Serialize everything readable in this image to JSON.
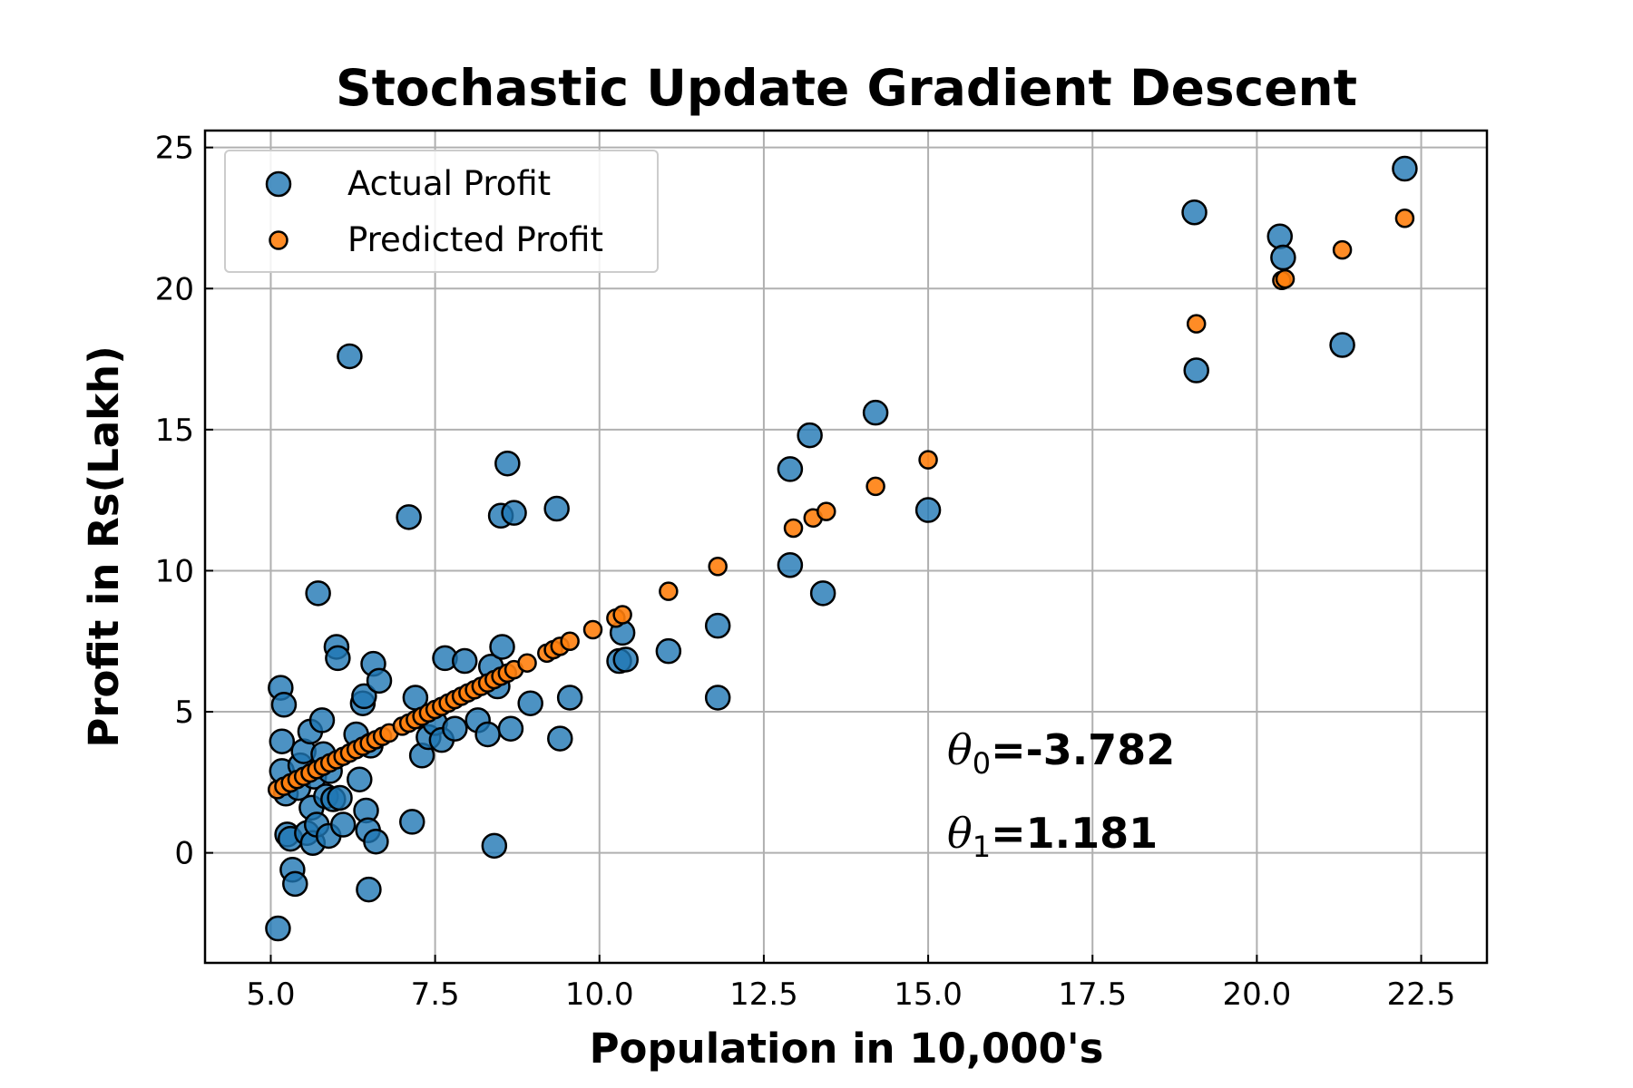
{
  "chart_data": {
    "type": "scatter",
    "title": "Stochastic Update Gradient Descent",
    "xlabel": "Population in 10,000's",
    "ylabel": "Profit in Rs(Lakh)",
    "xlim": [
      4.0,
      23.5
    ],
    "ylim": [
      -3.9,
      25.6
    ],
    "xticks": [
      "5.0",
      "7.5",
      "10.0",
      "12.5",
      "15.0",
      "17.5",
      "20.0",
      "22.5"
    ],
    "xtick_values": [
      5.0,
      7.5,
      10.0,
      12.5,
      15.0,
      17.5,
      20.0,
      22.5
    ],
    "yticks": [
      "0",
      "5",
      "10",
      "15",
      "20",
      "25"
    ],
    "ytick_values": [
      0,
      5,
      10,
      15,
      20,
      25
    ],
    "grid": true,
    "legend_position": "top-left",
    "annotations": [
      {
        "symbol": "θ",
        "sub": "0",
        "text": "=-3.782"
      },
      {
        "symbol": "θ",
        "sub": "1",
        "text": "=1.181"
      }
    ],
    "series": [
      {
        "name": "Actual Profit",
        "color": "#1f77b4",
        "points": [
          [
            5.11,
            -2.68
          ],
          [
            5.15,
            5.85
          ],
          [
            5.17,
            3.95
          ],
          [
            5.17,
            2.9
          ],
          [
            5.2,
            5.25
          ],
          [
            5.23,
            2.1
          ],
          [
            5.25,
            0.65
          ],
          [
            5.3,
            0.5
          ],
          [
            5.33,
            -0.6
          ],
          [
            5.37,
            -1.1
          ],
          [
            5.42,
            2.3
          ],
          [
            5.45,
            3.1
          ],
          [
            5.5,
            3.6
          ],
          [
            5.55,
            0.7
          ],
          [
            5.6,
            4.3
          ],
          [
            5.62,
            1.6
          ],
          [
            5.64,
            0.35
          ],
          [
            5.66,
            2.7
          ],
          [
            5.7,
            1.0
          ],
          [
            5.72,
            9.2
          ],
          [
            5.78,
            4.7
          ],
          [
            5.8,
            3.5
          ],
          [
            5.84,
            2.0
          ],
          [
            5.88,
            0.6
          ],
          [
            5.9,
            2.9
          ],
          [
            5.95,
            1.9
          ],
          [
            6.0,
            7.3
          ],
          [
            6.02,
            6.9
          ],
          [
            6.05,
            1.95
          ],
          [
            6.1,
            1.0
          ],
          [
            6.2,
            17.6
          ],
          [
            6.3,
            4.2
          ],
          [
            6.35,
            2.6
          ],
          [
            6.4,
            5.3
          ],
          [
            6.42,
            5.55
          ],
          [
            6.45,
            1.5
          ],
          [
            6.48,
            0.8
          ],
          [
            6.49,
            -1.3
          ],
          [
            6.52,
            3.8
          ],
          [
            6.56,
            6.7
          ],
          [
            6.6,
            0.4
          ],
          [
            6.65,
            6.1
          ],
          [
            7.1,
            11.9
          ],
          [
            7.15,
            1.1
          ],
          [
            7.2,
            5.5
          ],
          [
            7.3,
            3.45
          ],
          [
            7.4,
            4.1
          ],
          [
            7.5,
            4.6
          ],
          [
            7.6,
            4.0
          ],
          [
            7.65,
            6.9
          ],
          [
            7.8,
            4.4
          ],
          [
            7.95,
            6.8
          ],
          [
            8.15,
            4.7
          ],
          [
            8.3,
            4.2
          ],
          [
            8.35,
            6.6
          ],
          [
            8.4,
            0.25
          ],
          [
            8.45,
            5.9
          ],
          [
            8.5,
            11.95
          ],
          [
            8.52,
            7.3
          ],
          [
            8.6,
            13.8
          ],
          [
            8.65,
            4.4
          ],
          [
            8.7,
            12.05
          ],
          [
            8.95,
            5.3
          ],
          [
            9.35,
            12.2
          ],
          [
            9.4,
            4.05
          ],
          [
            9.55,
            5.5
          ],
          [
            10.3,
            6.8
          ],
          [
            10.35,
            7.8
          ],
          [
            10.4,
            6.85
          ],
          [
            11.05,
            7.15
          ],
          [
            11.8,
            8.05
          ],
          [
            11.8,
            5.5
          ],
          [
            12.9,
            13.6
          ],
          [
            12.9,
            10.2
          ],
          [
            13.2,
            14.8
          ],
          [
            13.4,
            9.2
          ],
          [
            14.2,
            15.6
          ],
          [
            15.0,
            12.15
          ],
          [
            19.05,
            22.7
          ],
          [
            19.08,
            17.1
          ],
          [
            20.35,
            21.85
          ],
          [
            20.4,
            21.1
          ],
          [
            21.3,
            18.0
          ],
          [
            22.25,
            24.25
          ]
        ]
      },
      {
        "name": "Predicted Profit",
        "color": "#ff7f0e",
        "points": [
          [
            5.1,
            2.24
          ],
          [
            5.2,
            2.36
          ],
          [
            5.3,
            2.48
          ],
          [
            5.4,
            2.6
          ],
          [
            5.5,
            2.71
          ],
          [
            5.6,
            2.83
          ],
          [
            5.7,
            2.95
          ],
          [
            5.8,
            3.07
          ],
          [
            5.9,
            3.19
          ],
          [
            6.0,
            3.3
          ],
          [
            6.1,
            3.42
          ],
          [
            6.2,
            3.54
          ],
          [
            6.3,
            3.66
          ],
          [
            6.4,
            3.78
          ],
          [
            6.5,
            3.89
          ],
          [
            6.6,
            4.01
          ],
          [
            6.7,
            4.13
          ],
          [
            6.8,
            4.25
          ],
          [
            7.0,
            4.49
          ],
          [
            7.1,
            4.6
          ],
          [
            7.2,
            4.72
          ],
          [
            7.3,
            4.84
          ],
          [
            7.4,
            4.96
          ],
          [
            7.5,
            5.08
          ],
          [
            7.6,
            5.19
          ],
          [
            7.7,
            5.31
          ],
          [
            7.8,
            5.43
          ],
          [
            7.9,
            5.55
          ],
          [
            8.0,
            5.67
          ],
          [
            8.1,
            5.78
          ],
          [
            8.2,
            5.9
          ],
          [
            8.3,
            6.02
          ],
          [
            8.4,
            6.14
          ],
          [
            8.5,
            6.26
          ],
          [
            8.6,
            6.37
          ],
          [
            8.7,
            6.49
          ],
          [
            8.9,
            6.73
          ],
          [
            9.2,
            7.08
          ],
          [
            9.3,
            7.2
          ],
          [
            9.4,
            7.32
          ],
          [
            9.55,
            7.5
          ],
          [
            9.9,
            7.91
          ],
          [
            10.25,
            8.32
          ],
          [
            10.35,
            8.44
          ],
          [
            11.05,
            9.27
          ],
          [
            11.8,
            10.15
          ],
          [
            12.95,
            11.51
          ],
          [
            13.25,
            11.87
          ],
          [
            13.45,
            12.1
          ],
          [
            14.2,
            12.99
          ],
          [
            15.0,
            13.93
          ],
          [
            19.08,
            18.75
          ],
          [
            20.38,
            20.29
          ],
          [
            20.43,
            20.34
          ],
          [
            21.3,
            21.37
          ],
          [
            22.25,
            22.49
          ]
        ]
      }
    ]
  }
}
